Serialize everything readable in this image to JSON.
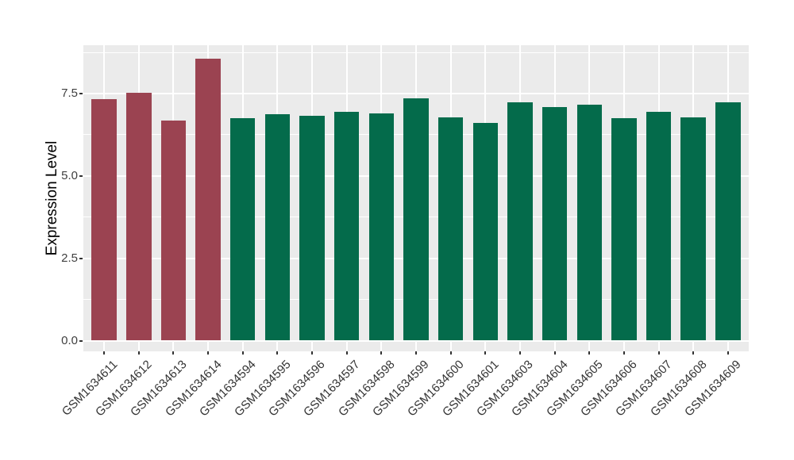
{
  "chart_data": {
    "type": "bar",
    "title": "",
    "xlabel": "",
    "ylabel": "Expression Level",
    "categories": [
      "GSM1634611",
      "GSM1634612",
      "GSM1634613",
      "GSM1634614",
      "GSM1634594",
      "GSM1634595",
      "GSM1634596",
      "GSM1634597",
      "GSM1634598",
      "GSM1634599",
      "GSM1634600",
      "GSM1634601",
      "GSM1634603",
      "GSM1634604",
      "GSM1634605",
      "GSM1634606",
      "GSM1634607",
      "GSM1634608",
      "GSM1634609"
    ],
    "values": [
      7.34,
      7.52,
      6.68,
      8.56,
      6.75,
      6.87,
      6.83,
      6.95,
      6.89,
      7.36,
      6.78,
      6.61,
      7.23,
      7.1,
      7.16,
      6.75,
      6.95,
      6.78,
      7.24
    ],
    "bar_colors": [
      "#9B4351",
      "#9B4351",
      "#9B4351",
      "#9B4351",
      "#046B4B",
      "#046B4B",
      "#046B4B",
      "#046B4B",
      "#046B4B",
      "#046B4B",
      "#046B4B",
      "#046B4B",
      "#046B4B",
      "#046B4B",
      "#046B4B",
      "#046B4B",
      "#046B4B",
      "#046B4B",
      "#046B4B"
    ],
    "palette": {
      "maroon": "#9B4351",
      "green": "#046B4B"
    },
    "y_ticks": [
      0.0,
      2.5,
      5.0,
      7.5
    ],
    "y_tick_labels": [
      "0.0",
      "2.5",
      "5.0",
      "7.5"
    ],
    "y_minor_ticks": [
      1.25,
      3.75,
      6.25,
      8.75
    ],
    "ylim": [
      0,
      8.97
    ],
    "x_tick_label_rotation_deg": 45,
    "panel_background": "#EBEBEB",
    "gridline_color": "#FFFFFF",
    "axis_text_color": "#404040",
    "grid": "major+minor horizontal, major vertical at category centers",
    "legend": "none"
  }
}
